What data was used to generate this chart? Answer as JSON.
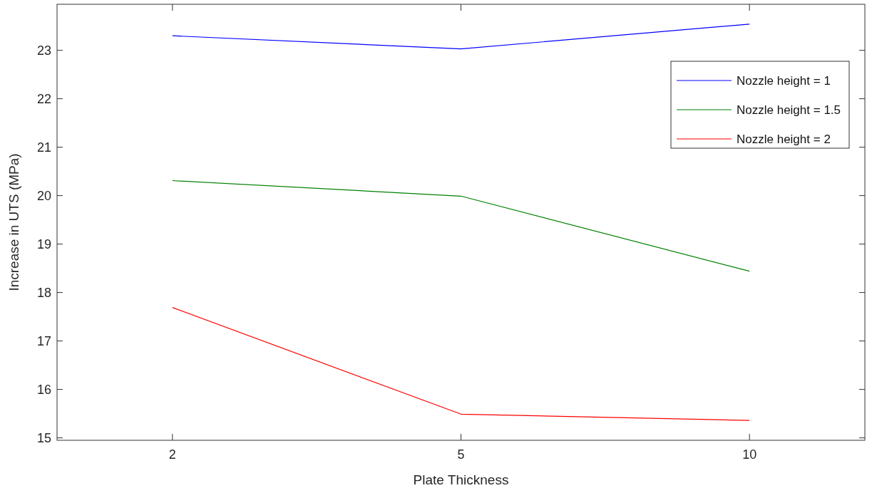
{
  "chart_data": {
    "type": "line",
    "xlabel": "Plate Thickness",
    "ylabel": "Increase in UTS (MPa)",
    "categories": [
      "2",
      "5",
      "10"
    ],
    "series": [
      {
        "name": "Nozzle height = 1",
        "color": "#0000ff",
        "values": [
          23.3,
          23.03,
          23.54
        ]
      },
      {
        "name": "Nozzle height = 1.5",
        "color": "#008000",
        "values": [
          20.31,
          19.99,
          18.44
        ]
      },
      {
        "name": "Nozzle height = 2",
        "color": "#ff0000",
        "values": [
          17.69,
          15.49,
          15.36
        ]
      }
    ],
    "ylim": [
      14.95,
      23.95
    ],
    "yticks": [
      15,
      16,
      17,
      18,
      19,
      20,
      21,
      22,
      23
    ],
    "legend": "top right",
    "grid": false
  }
}
